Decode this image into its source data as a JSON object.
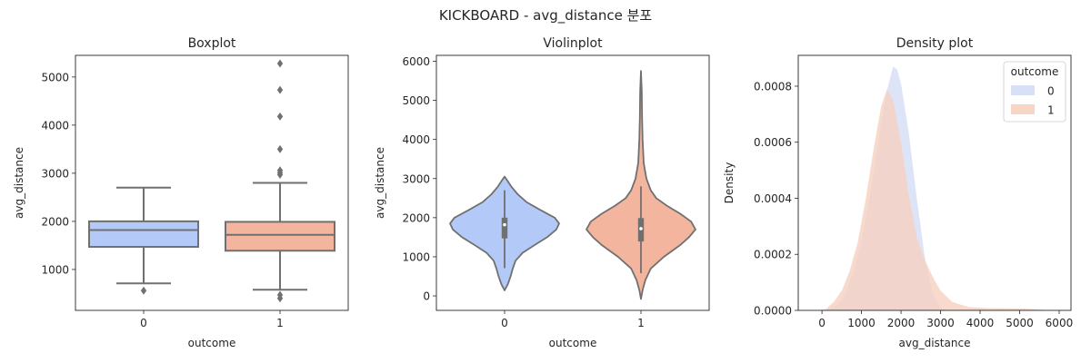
{
  "suptitle": "KICKBOARD - avg_distance 분포",
  "colors": {
    "zero": "#b3c9f7",
    "one": "#f3b59e",
    "line": "#707070",
    "kde_zero": "#d4ddf6",
    "kde_one": "#f6d1c0"
  },
  "chart_data": [
    {
      "type": "box",
      "title": "Boxplot",
      "xlabel": "outcome",
      "ylabel": "avg_distance",
      "categories": [
        "0",
        "1"
      ],
      "ylim": [
        150,
        5450
      ],
      "yticks": [
        1000,
        2000,
        3000,
        4000,
        5000
      ],
      "ytick_labels": [
        "1000",
        "2000",
        "3000",
        "4000",
        "5000"
      ],
      "series": [
        {
          "category": "0",
          "whisker_low": 710,
          "q1": 1470,
          "median": 1820,
          "q3": 2000,
          "whisker_high": 2700,
          "outliers": [
            560
          ]
        },
        {
          "category": "1",
          "whisker_low": 580,
          "q1": 1390,
          "median": 1720,
          "q3": 1990,
          "whisker_high": 2800,
          "outliers": [
            400,
            470,
            2970,
            3010,
            3060,
            3500,
            4180,
            4730,
            5280
          ]
        }
      ]
    },
    {
      "type": "violin",
      "title": "Violinplot",
      "xlabel": "outcome",
      "ylabel": "avg_distance",
      "categories": [
        "0",
        "1"
      ],
      "ylim": [
        -370,
        6150
      ],
      "yticks": [
        0,
        1000,
        2000,
        3000,
        4000,
        5000,
        6000
      ],
      "ytick_labels": [
        "0",
        "1000",
        "2000",
        "3000",
        "4000",
        "5000",
        "6000"
      ],
      "series": [
        {
          "category": "0",
          "min": 140,
          "max": 3050,
          "q1": 1470,
          "median": 1820,
          "q3": 2000,
          "whisker_low": 710,
          "whisker_high": 2700,
          "profile": [
            [
              140,
              0.0
            ],
            [
              300,
              0.06
            ],
            [
              500,
              0.11
            ],
            [
              700,
              0.15
            ],
            [
              900,
              0.2
            ],
            [
              1100,
              0.33
            ],
            [
              1300,
              0.55
            ],
            [
              1500,
              0.78
            ],
            [
              1700,
              0.95
            ],
            [
              1850,
              1.0
            ],
            [
              2000,
              0.92
            ],
            [
              2200,
              0.65
            ],
            [
              2400,
              0.4
            ],
            [
              2600,
              0.24
            ],
            [
              2800,
              0.12
            ],
            [
              2950,
              0.05
            ],
            [
              3050,
              0.0
            ]
          ]
        },
        {
          "category": "1",
          "min": -80,
          "max": 5750,
          "q1": 1390,
          "median": 1720,
          "q3": 1990,
          "whisker_low": 580,
          "whisker_high": 2800,
          "profile": [
            [
              -80,
              0.0
            ],
            [
              150,
              0.03
            ],
            [
              400,
              0.08
            ],
            [
              700,
              0.18
            ],
            [
              1000,
              0.42
            ],
            [
              1300,
              0.72
            ],
            [
              1500,
              0.88
            ],
            [
              1700,
              1.0
            ],
            [
              1900,
              0.92
            ],
            [
              2100,
              0.72
            ],
            [
              2300,
              0.48
            ],
            [
              2500,
              0.28
            ],
            [
              2700,
              0.18
            ],
            [
              3000,
              0.1
            ],
            [
              3400,
              0.05
            ],
            [
              4000,
              0.03
            ],
            [
              4600,
              0.02
            ],
            [
              5200,
              0.015
            ],
            [
              5750,
              0.0
            ]
          ]
        }
      ]
    },
    {
      "type": "area",
      "title": "Density plot",
      "xlabel": "avg_distance",
      "ylabel": "Density",
      "xlim": [
        -600,
        6300
      ],
      "ylim": [
        0,
        0.00091
      ],
      "xticks": [
        0,
        1000,
        2000,
        3000,
        4000,
        5000,
        6000
      ],
      "xtick_labels": [
        "0",
        "1000",
        "2000",
        "3000",
        "4000",
        "5000",
        "6000"
      ],
      "yticks": [
        0,
        0.0002,
        0.0004,
        0.0006,
        0.0008
      ],
      "ytick_labels": [
        "0.0000",
        "0.0002",
        "0.0004",
        "0.0006",
        "0.0008"
      ],
      "legend_title": "outcome",
      "legend_position": "top-right",
      "series": [
        {
          "name": "0",
          "points": [
            [
              0,
              0
            ],
            [
              200,
              5e-06
            ],
            [
              400,
              2e-05
            ],
            [
              600,
              6e-05
            ],
            [
              800,
              0.00014
            ],
            [
              1000,
              0.00025
            ],
            [
              1200,
              0.0004
            ],
            [
              1400,
              0.00058
            ],
            [
              1600,
              0.00076
            ],
            [
              1800,
              0.00087
            ],
            [
              1900,
              0.00086
            ],
            [
              2000,
              0.00081
            ],
            [
              2200,
              0.00063
            ],
            [
              2400,
              0.0004
            ],
            [
              2600,
              0.00019
            ],
            [
              2800,
              6e-05
            ],
            [
              3000,
              1e-05
            ],
            [
              3200,
              0
            ]
          ]
        },
        {
          "name": "1",
          "points": [
            [
              -100,
              0
            ],
            [
              100,
              5e-06
            ],
            [
              300,
              3e-05
            ],
            [
              500,
              7e-05
            ],
            [
              700,
              0.00014
            ],
            [
              900,
              0.00024
            ],
            [
              1100,
              0.00039
            ],
            [
              1300,
              0.00057
            ],
            [
              1500,
              0.00073
            ],
            [
              1650,
              0.00079
            ],
            [
              1800,
              0.00075
            ],
            [
              2000,
              0.0006
            ],
            [
              2200,
              0.00041
            ],
            [
              2400,
              0.00026
            ],
            [
              2600,
              0.00018
            ],
            [
              2800,
              0.00012
            ],
            [
              3000,
              7e-05
            ],
            [
              3300,
              3e-05
            ],
            [
              3700,
              1.2e-05
            ],
            [
              4200,
              8e-06
            ],
            [
              4700,
              7e-06
            ],
            [
              5200,
              6e-06
            ],
            [
              5600,
              2e-06
            ],
            [
              5900,
              0
            ]
          ]
        }
      ]
    }
  ]
}
